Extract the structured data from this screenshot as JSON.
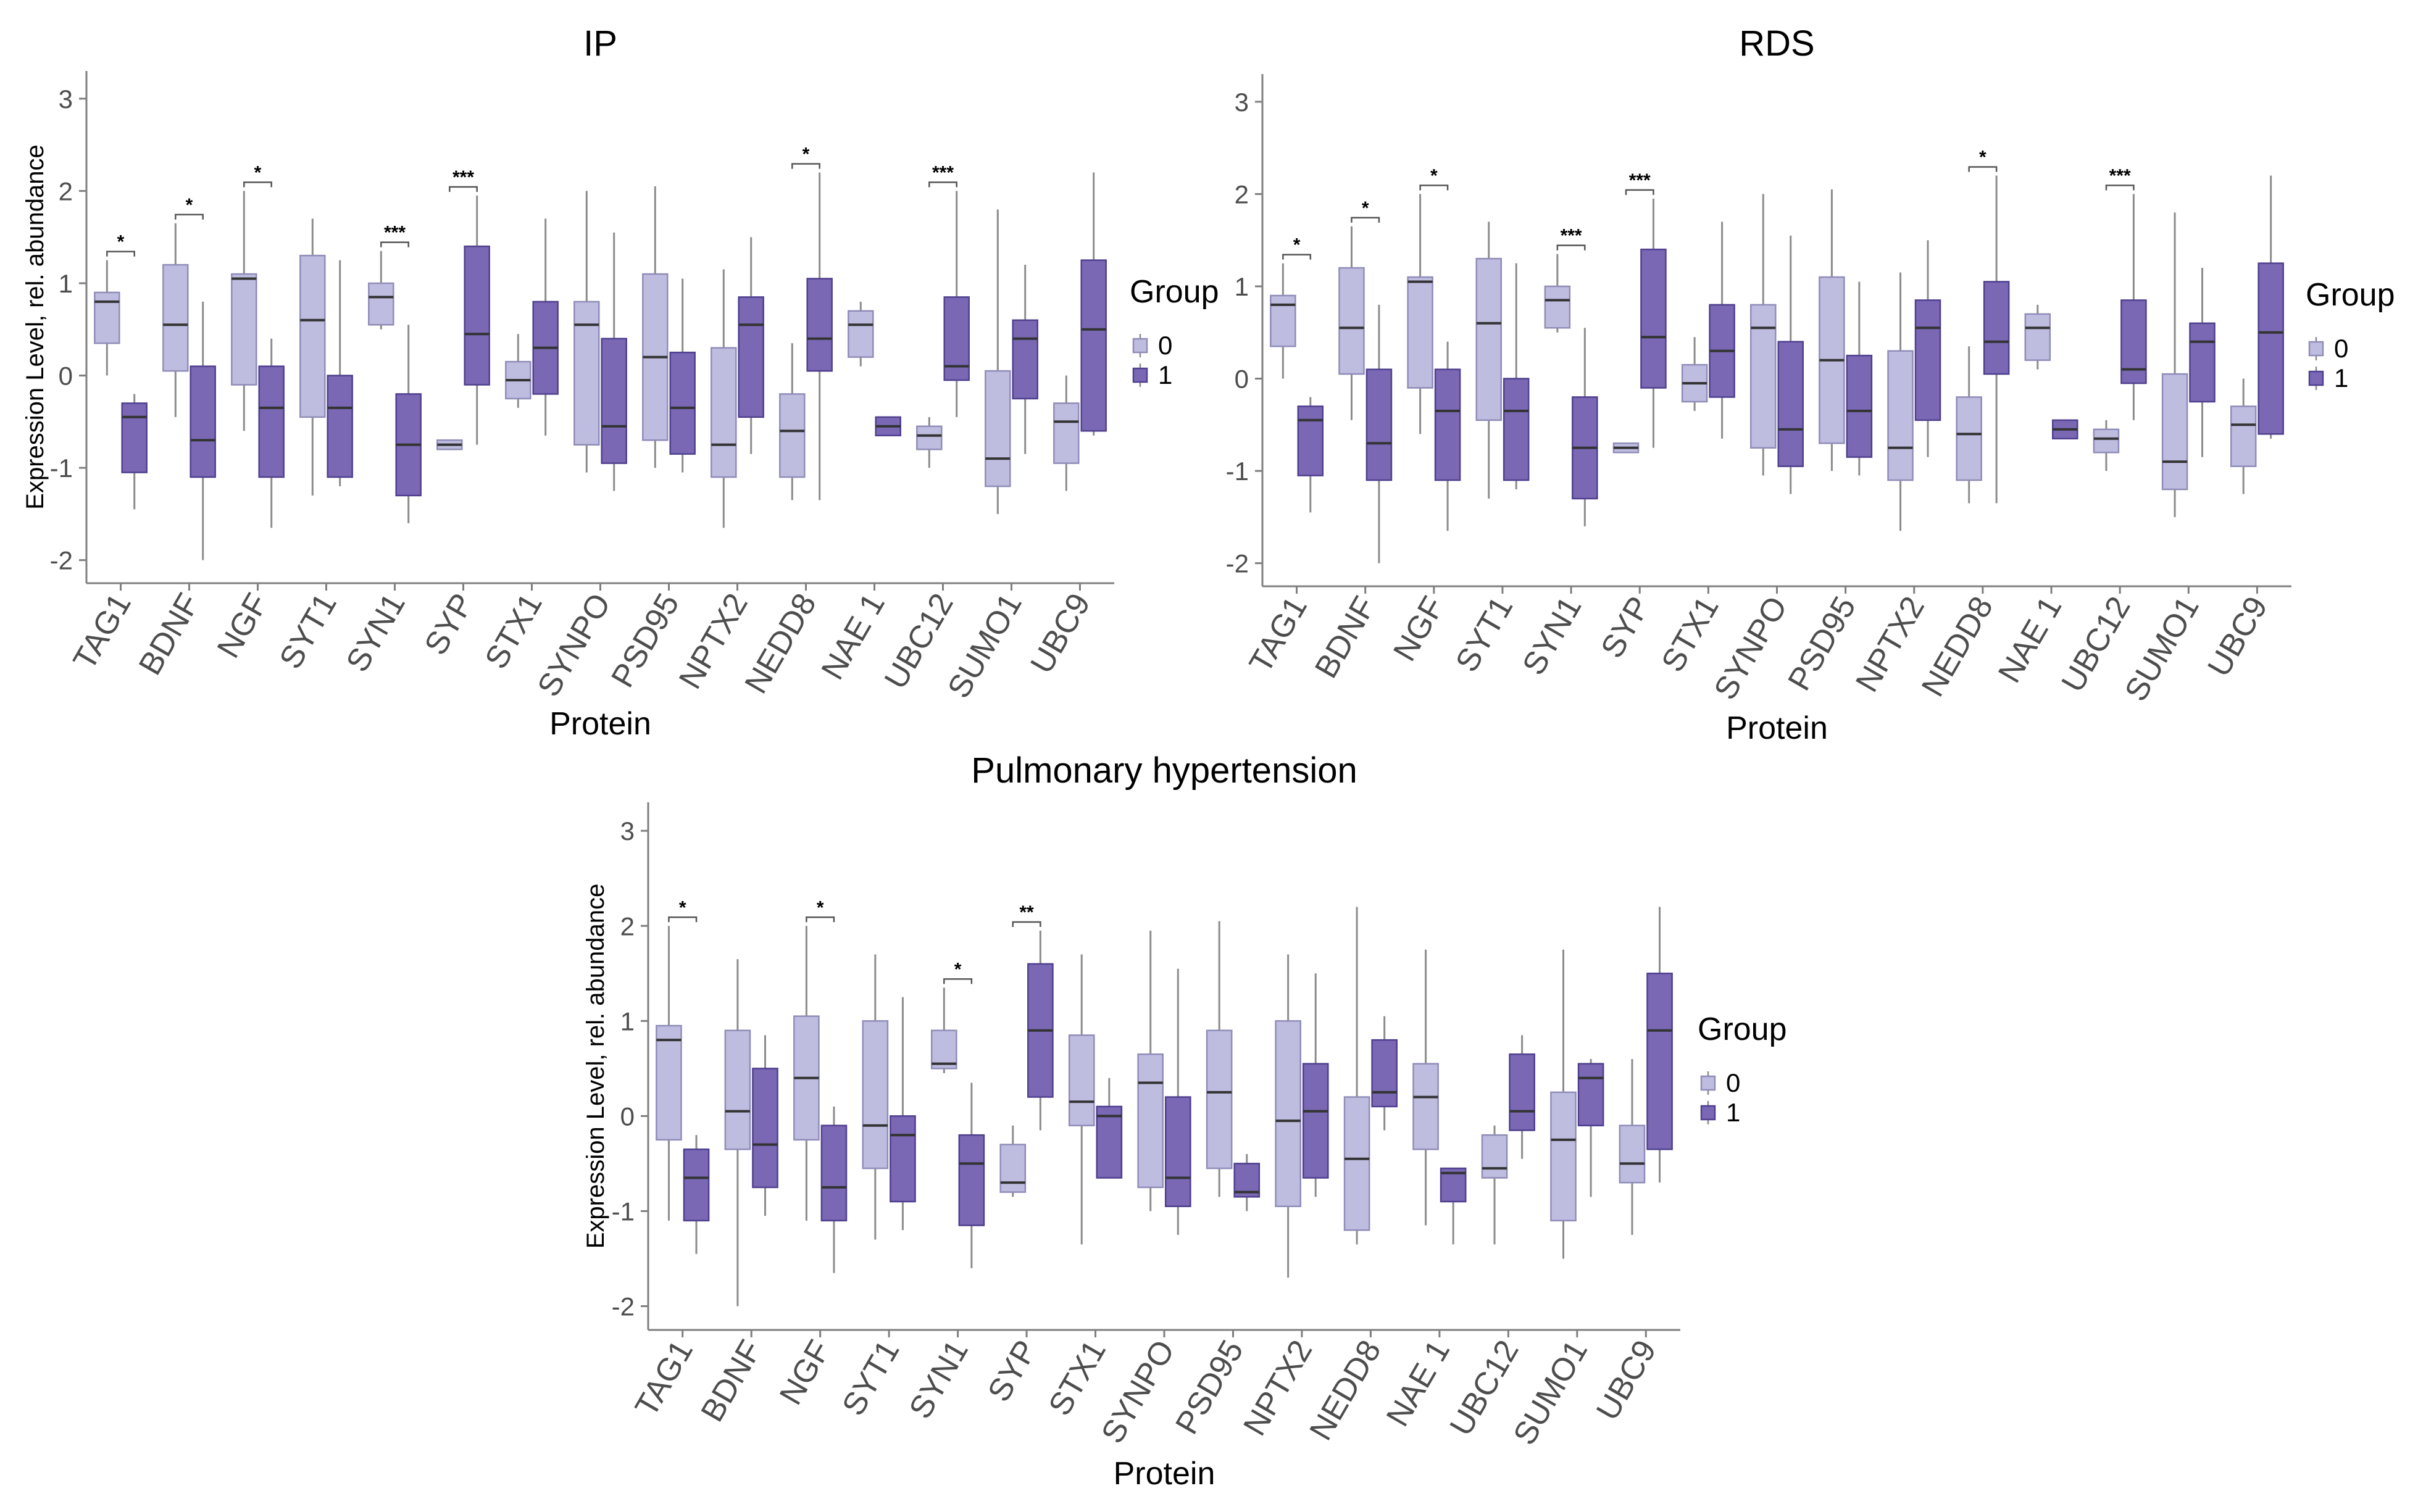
{
  "figure": {
    "legend_title": "Group",
    "legend_labels": [
      "0",
      "1"
    ]
  },
  "colors": {
    "group0_fill": "#bebde0",
    "group0_stroke": "#8f8cb8",
    "group1_fill": "#7a68b5",
    "group1_stroke": "#4f3f8e",
    "axis": "#7f7f7f",
    "whisker": "#8c8c8c",
    "median": "#333333",
    "text": "#000000",
    "tick_text": "#4d4d4d"
  },
  "chart_data": [
    {
      "type": "box",
      "title": "IP",
      "xlabel": "Protein",
      "ylabel": "Expression Level, rel. abundance",
      "ylim": [
        -2.25,
        3.3
      ],
      "yticks": [
        -2,
        -1,
        0,
        1,
        2,
        3
      ],
      "categories": [
        "TAG1",
        "BDNF",
        "NGF",
        "SYT1",
        "SYN1",
        "SYP",
        "STX1",
        "SYNPO",
        "PSD95",
        "NPTX2",
        "NEDD8",
        "NAE 1",
        "UBC12",
        "SUMO1",
        "UBC9"
      ],
      "groups": [
        "0",
        "1"
      ],
      "legend": {
        "title": "Group",
        "labels": [
          "0",
          "1"
        ],
        "position": "right"
      },
      "boxes": {
        "0": [
          [
            0.0,
            0.35,
            0.8,
            0.9,
            1.25
          ],
          [
            -0.45,
            0.05,
            0.55,
            1.2,
            1.65
          ],
          [
            -0.6,
            -0.1,
            1.05,
            1.1,
            2.0
          ],
          [
            -1.3,
            -0.45,
            0.6,
            1.3,
            1.7
          ],
          [
            0.5,
            0.55,
            0.85,
            1.0,
            1.35
          ],
          [
            -0.8,
            -0.8,
            -0.75,
            -0.7,
            -0.7
          ],
          [
            -0.35,
            -0.25,
            -0.05,
            0.15,
            0.45
          ],
          [
            -1.05,
            -0.75,
            0.55,
            0.8,
            2.0
          ],
          [
            -1.0,
            -0.7,
            0.2,
            1.1,
            2.05
          ],
          [
            -1.65,
            -1.1,
            -0.75,
            0.3,
            1.15
          ],
          [
            -1.35,
            -1.1,
            -0.6,
            -0.2,
            0.35
          ],
          [
            0.1,
            0.2,
            0.55,
            0.7,
            0.8
          ],
          [
            -1.0,
            -0.8,
            -0.65,
            -0.55,
            -0.45
          ],
          [
            -1.5,
            -1.2,
            -0.9,
            0.05,
            1.8
          ],
          [
            -1.25,
            -0.95,
            -0.5,
            -0.3,
            0.0
          ]
        ],
        "1": [
          [
            -1.45,
            -1.05,
            -0.45,
            -0.3,
            -0.2
          ],
          [
            -2.0,
            -1.1,
            -0.7,
            0.1,
            0.8
          ],
          [
            -1.65,
            -1.1,
            -0.35,
            0.1,
            0.4
          ],
          [
            -1.2,
            -1.1,
            -0.35,
            0.0,
            1.25
          ],
          [
            -1.6,
            -1.3,
            -0.75,
            -0.2,
            0.55
          ],
          [
            -0.75,
            -0.1,
            0.45,
            1.4,
            1.95
          ],
          [
            -0.65,
            -0.2,
            0.3,
            0.8,
            1.7
          ],
          [
            -1.25,
            -0.95,
            -0.55,
            0.4,
            1.55
          ],
          [
            -1.05,
            -0.85,
            -0.35,
            0.25,
            1.05
          ],
          [
            -0.85,
            -0.45,
            0.55,
            0.85,
            1.5
          ],
          [
            -1.35,
            0.05,
            0.4,
            1.05,
            2.2
          ],
          [
            -0.65,
            -0.65,
            -0.55,
            -0.45,
            -0.45
          ],
          [
            -0.45,
            -0.05,
            0.1,
            0.85,
            2.0
          ],
          [
            -0.85,
            -0.25,
            0.4,
            0.6,
            1.2
          ],
          [
            -0.65,
            -0.6,
            0.5,
            1.25,
            2.2
          ]
        ]
      },
      "significance": [
        {
          "category": "TAG1",
          "label": "*"
        },
        {
          "category": "BDNF",
          "label": "*"
        },
        {
          "category": "NGF",
          "label": "*"
        },
        {
          "category": "SYN1",
          "label": "***"
        },
        {
          "category": "SYP",
          "label": "***"
        },
        {
          "category": "NEDD8",
          "label": "*"
        },
        {
          "category": "UBC12",
          "label": "***"
        }
      ]
    },
    {
      "type": "box",
      "title": "RDS",
      "xlabel": "Protein",
      "ylabel": "",
      "ylim": [
        -2.25,
        3.3
      ],
      "yticks": [
        -2,
        -1,
        0,
        1,
        2,
        3
      ],
      "categories": [
        "TAG1",
        "BDNF",
        "NGF",
        "SYT1",
        "SYN1",
        "SYP",
        "STX1",
        "SYNPO",
        "PSD95",
        "NPTX2",
        "NEDD8",
        "NAE 1",
        "UBC12",
        "SUMO1",
        "UBC9"
      ],
      "groups": [
        "0",
        "1"
      ],
      "legend": {
        "title": "Group",
        "labels": [
          "0",
          "1"
        ],
        "position": "right"
      },
      "boxes": {
        "0": [
          [
            0.0,
            0.35,
            0.8,
            0.9,
            1.25
          ],
          [
            -0.45,
            0.05,
            0.55,
            1.2,
            1.65
          ],
          [
            -0.6,
            -0.1,
            1.05,
            1.1,
            2.0
          ],
          [
            -1.3,
            -0.45,
            0.6,
            1.3,
            1.7
          ],
          [
            0.5,
            0.55,
            0.85,
            1.0,
            1.35
          ],
          [
            -0.8,
            -0.8,
            -0.75,
            -0.7,
            -0.7
          ],
          [
            -0.35,
            -0.25,
            -0.05,
            0.15,
            0.45
          ],
          [
            -1.05,
            -0.75,
            0.55,
            0.8,
            2.0
          ],
          [
            -1.0,
            -0.7,
            0.2,
            1.1,
            2.05
          ],
          [
            -1.65,
            -1.1,
            -0.75,
            0.3,
            1.15
          ],
          [
            -1.35,
            -1.1,
            -0.6,
            -0.2,
            0.35
          ],
          [
            0.1,
            0.2,
            0.55,
            0.7,
            0.8
          ],
          [
            -1.0,
            -0.8,
            -0.65,
            -0.55,
            -0.45
          ],
          [
            -1.5,
            -1.2,
            -0.9,
            0.05,
            1.8
          ],
          [
            -1.25,
            -0.95,
            -0.5,
            -0.3,
            0.0
          ]
        ],
        "1": [
          [
            -1.45,
            -1.05,
            -0.45,
            -0.3,
            -0.2
          ],
          [
            -2.0,
            -1.1,
            -0.7,
            0.1,
            0.8
          ],
          [
            -1.65,
            -1.1,
            -0.35,
            0.1,
            0.4
          ],
          [
            -1.2,
            -1.1,
            -0.35,
            0.0,
            1.25
          ],
          [
            -1.6,
            -1.3,
            -0.75,
            -0.2,
            0.55
          ],
          [
            -0.75,
            -0.1,
            0.45,
            1.4,
            1.95
          ],
          [
            -0.65,
            -0.2,
            0.3,
            0.8,
            1.7
          ],
          [
            -1.25,
            -0.95,
            -0.55,
            0.4,
            1.55
          ],
          [
            -1.05,
            -0.85,
            -0.35,
            0.25,
            1.05
          ],
          [
            -0.85,
            -0.45,
            0.55,
            0.85,
            1.5
          ],
          [
            -1.35,
            0.05,
            0.4,
            1.05,
            2.2
          ],
          [
            -0.65,
            -0.65,
            -0.55,
            -0.45,
            -0.45
          ],
          [
            -0.45,
            -0.05,
            0.1,
            0.85,
            2.0
          ],
          [
            -0.85,
            -0.25,
            0.4,
            0.6,
            1.2
          ],
          [
            -0.65,
            -0.6,
            0.5,
            1.25,
            2.2
          ]
        ]
      },
      "significance": [
        {
          "category": "TAG1",
          "label": "*"
        },
        {
          "category": "BDNF",
          "label": "*"
        },
        {
          "category": "NGF",
          "label": "*"
        },
        {
          "category": "SYN1",
          "label": "***"
        },
        {
          "category": "SYP",
          "label": "***"
        },
        {
          "category": "NEDD8",
          "label": "*"
        },
        {
          "category": "UBC12",
          "label": "***"
        }
      ]
    },
    {
      "type": "box",
      "title": "Pulmonary hypertension",
      "xlabel": "Protein",
      "ylabel": "Expression Level, rel. abundance",
      "ylim": [
        -2.25,
        3.3
      ],
      "yticks": [
        -2,
        -1,
        0,
        1,
        2,
        3
      ],
      "categories": [
        "TAG1",
        "BDNF",
        "NGF",
        "SYT1",
        "SYN1",
        "SYP",
        "STX1",
        "SYNPO",
        "PSD95",
        "NPTX2",
        "NEDD8",
        "NAE 1",
        "UBC12",
        "SUMO1",
        "UBC9"
      ],
      "groups": [
        "0",
        "1"
      ],
      "legend": {
        "title": "Group",
        "labels": [
          "0",
          "1"
        ],
        "position": "right"
      },
      "boxes": {
        "0": [
          [
            -1.1,
            -0.25,
            0.8,
            0.95,
            2.0
          ],
          [
            -2.0,
            -0.35,
            0.05,
            0.9,
            1.65
          ],
          [
            -1.1,
            -0.25,
            0.4,
            1.05,
            2.0
          ],
          [
            -1.3,
            -0.55,
            -0.1,
            1.0,
            1.7
          ],
          [
            0.45,
            0.5,
            0.55,
            0.9,
            1.35
          ],
          [
            -0.85,
            -0.8,
            -0.7,
            -0.3,
            -0.1
          ],
          [
            -1.35,
            -0.1,
            0.15,
            0.85,
            1.7
          ],
          [
            -1.0,
            -0.75,
            0.35,
            0.65,
            1.95
          ],
          [
            -0.85,
            -0.55,
            0.25,
            0.9,
            2.05
          ],
          [
            -1.7,
            -0.95,
            -0.05,
            1.0,
            1.7
          ],
          [
            -1.35,
            -1.2,
            -0.45,
            0.2,
            2.2
          ],
          [
            -1.15,
            -0.35,
            0.2,
            0.55,
            1.75
          ],
          [
            -1.35,
            -0.65,
            -0.55,
            -0.2,
            -0.1
          ],
          [
            -1.5,
            -1.1,
            -0.25,
            0.25,
            1.75
          ],
          [
            -1.25,
            -0.7,
            -0.5,
            -0.1,
            0.6
          ]
        ],
        "1": [
          [
            -1.45,
            -1.1,
            -0.65,
            -0.35,
            -0.2
          ],
          [
            -1.05,
            -0.75,
            -0.3,
            0.5,
            0.85
          ],
          [
            -1.65,
            -1.1,
            -0.75,
            -0.1,
            0.1
          ],
          [
            -1.2,
            -0.9,
            -0.2,
            0.0,
            1.25
          ],
          [
            -1.6,
            -1.15,
            -0.5,
            -0.2,
            0.35
          ],
          [
            -0.15,
            0.2,
            0.9,
            1.6,
            1.95
          ],
          [
            -0.65,
            -0.65,
            0.0,
            0.1,
            0.4
          ],
          [
            -1.25,
            -0.95,
            -0.65,
            0.2,
            1.55
          ],
          [
            -1.0,
            -0.85,
            -0.8,
            -0.5,
            -0.4
          ],
          [
            -0.85,
            -0.65,
            0.05,
            0.55,
            1.5
          ],
          [
            -0.15,
            0.1,
            0.25,
            0.8,
            1.05
          ],
          [
            -1.35,
            -0.9,
            -0.6,
            -0.55,
            -0.55
          ],
          [
            -0.45,
            -0.15,
            0.05,
            0.65,
            0.85
          ],
          [
            -0.85,
            -0.1,
            0.4,
            0.55,
            0.6
          ],
          [
            -0.7,
            -0.35,
            0.9,
            1.5,
            2.2
          ]
        ]
      },
      "significance": [
        {
          "category": "TAG1",
          "label": "*"
        },
        {
          "category": "NGF",
          "label": "*"
        },
        {
          "category": "SYN1",
          "label": "*"
        },
        {
          "category": "SYP",
          "label": "**"
        }
      ]
    }
  ]
}
